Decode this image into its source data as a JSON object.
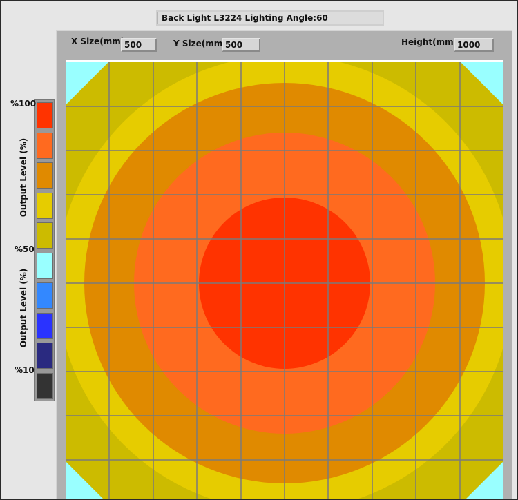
{
  "title": "Back Light L3224 Lighting Angle:60",
  "fields": {
    "x_size_label": "X Size(mm)",
    "x_size_value": "500",
    "y_size_label": "Y Size(mm)",
    "y_size_value": "500",
    "height_label": "Height(mm)",
    "height_value": "1000"
  },
  "legend": {
    "pct_100": "%100",
    "pct_50": "%50",
    "pct_10": "%10",
    "axis_upper": "Output Level (%)",
    "axis_lower": "Output Level (%)",
    "levels": [
      {
        "color": "#ff3300"
      },
      {
        "color": "#ff6a1f"
      },
      {
        "color": "#e08a00"
      },
      {
        "color": "#e6cc00"
      },
      {
        "color": "#ccbb00"
      },
      {
        "color": "#99ffff"
      },
      {
        "color": "#3388ff"
      },
      {
        "color": "#2a33ff"
      },
      {
        "color": "#2a2a80"
      },
      {
        "color": "#333333"
      }
    ]
  },
  "heatmap": {
    "colors": {
      "corner": "#99ffff",
      "olive": "#ccbb00",
      "yellow": "#e6cc00",
      "amber": "#e08a00",
      "orange": "#ff6a1f",
      "red": "#ff3300",
      "grid": "#7a7a7a"
    }
  }
}
